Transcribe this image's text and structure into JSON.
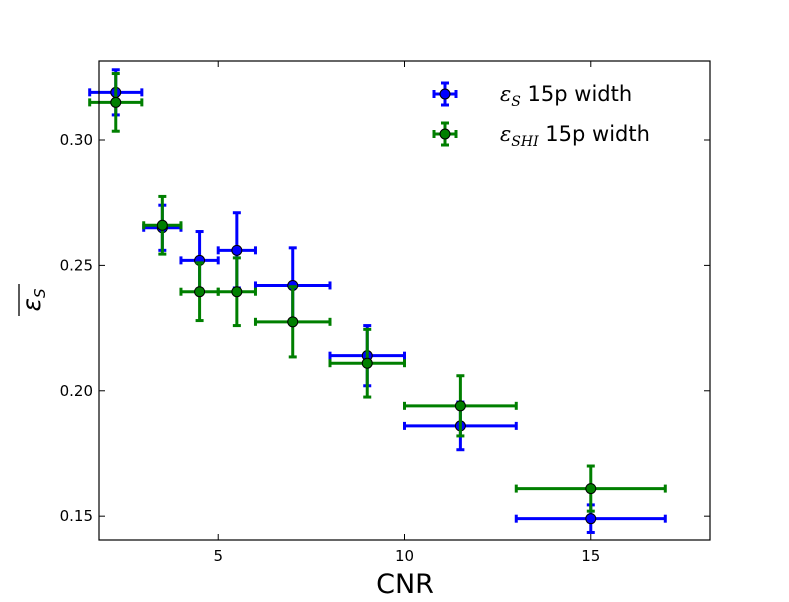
{
  "chart_data": {
    "type": "scatter",
    "title": "",
    "xlabel": "CNR",
    "ylabel": "ε",
    "ylabel_sub": "S",
    "xlim": [
      1.8,
      18.2
    ],
    "ylim": [
      0.1405,
      0.3315
    ],
    "xticks": [
      5,
      10,
      15
    ],
    "xtick_labels": [
      "5",
      "10",
      "15"
    ],
    "yticks": [
      0.15,
      0.2,
      0.25,
      0.3
    ],
    "ytick_labels": [
      "0.15",
      "0.20",
      "0.25",
      "0.30"
    ],
    "grid": false,
    "legend_position": "top-right",
    "series": [
      {
        "name": "ε_S 15p width",
        "legend_symbol": "ε",
        "legend_sub": "S",
        "legend_rest": " 15p width",
        "color": "#0000ff",
        "points": [
          {
            "x": 2.25,
            "y": 0.319,
            "xerr": 0.7,
            "yerr": 0.009
          },
          {
            "x": 3.5,
            "y": 0.265,
            "xerr": 0.5,
            "yerr": 0.009
          },
          {
            "x": 4.5,
            "y": 0.252,
            "xerr": 0.5,
            "yerr": 0.0115
          },
          {
            "x": 5.5,
            "y": 0.256,
            "xerr": 0.5,
            "yerr": 0.015
          },
          {
            "x": 7.0,
            "y": 0.242,
            "xerr": 1.0,
            "yerr": 0.015
          },
          {
            "x": 9.0,
            "y": 0.214,
            "xerr": 1.0,
            "yerr": 0.012
          },
          {
            "x": 11.5,
            "y": 0.186,
            "xerr": 1.5,
            "yerr": 0.0095
          },
          {
            "x": 15.0,
            "y": 0.149,
            "xerr": 2.0,
            "yerr": 0.0055
          }
        ]
      },
      {
        "name": "ε_SHI 15p width",
        "legend_symbol": "ε",
        "legend_sub": "SHI",
        "legend_rest": " 15p width",
        "color": "#007f00",
        "points": [
          {
            "x": 2.25,
            "y": 0.315,
            "xerr": 0.7,
            "yerr": 0.0115
          },
          {
            "x": 3.5,
            "y": 0.266,
            "xerr": 0.5,
            "yerr": 0.0115
          },
          {
            "x": 4.5,
            "y": 0.2395,
            "xerr": 0.5,
            "yerr": 0.0115
          },
          {
            "x": 5.5,
            "y": 0.2395,
            "xerr": 0.5,
            "yerr": 0.0135
          },
          {
            "x": 7.0,
            "y": 0.2275,
            "xerr": 1.0,
            "yerr": 0.014
          },
          {
            "x": 9.0,
            "y": 0.211,
            "xerr": 1.0,
            "yerr": 0.0135
          },
          {
            "x": 11.5,
            "y": 0.194,
            "xerr": 1.5,
            "yerr": 0.012
          },
          {
            "x": 15.0,
            "y": 0.161,
            "xerr": 2.0,
            "yerr": 0.009
          }
        ]
      }
    ]
  }
}
